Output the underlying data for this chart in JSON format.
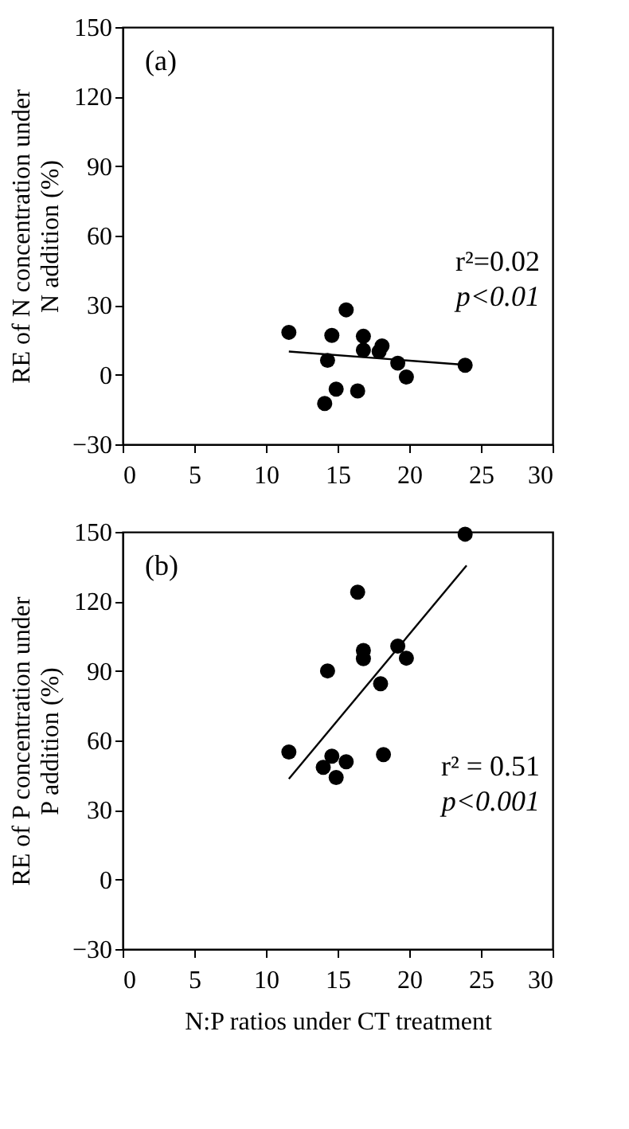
{
  "chart_data": [
    {
      "type": "scatter",
      "ylabel": "RE of N concentration under N addition (%)",
      "xlim": [
        0,
        30
      ],
      "xticks": [
        0,
        5,
        10,
        15,
        20,
        25,
        30
      ],
      "ylim": [
        -30,
        150
      ],
      "yticks": [
        -30,
        0,
        30,
        60,
        90,
        120,
        150
      ],
      "grid": false,
      "annotations": [
        "(a)",
        "r²=0.02",
        "p<0.01"
      ],
      "series": [
        {
          "marker": "circle",
          "color": "#000000",
          "x": [
            11.6,
            14.6,
            15.6,
            16.8,
            16.8,
            18.1,
            17.9,
            14.3,
            19.2,
            19.8,
            23.9,
            14.9,
            16.4,
            14.1
          ],
          "values": [
            18.3,
            17,
            28,
            16.6,
            10.6,
            12.4,
            10,
            6.2,
            5,
            -1,
            4.1,
            -6.2,
            -7,
            -12.4
          ]
        },
        {
          "type": "line",
          "color": "#000000",
          "x": [
            11.6,
            24.3
          ],
          "values": [
            10,
            4.1
          ]
        }
      ]
    },
    {
      "type": "scatter",
      "xlabel": "N:P ratios under CT treatment",
      "ylabel": "RE of P concentration under P addition (%)",
      "xlim": [
        0,
        30
      ],
      "xticks": [
        0,
        5,
        10,
        15,
        20,
        25,
        30
      ],
      "ylim": [
        -30,
        150
      ],
      "yticks": [
        -30,
        0,
        30,
        60,
        90,
        120,
        150
      ],
      "grid": false,
      "annotations": [
        "(b)",
        "r² = 0.51",
        "p<0.001"
      ],
      "series": [
        {
          "marker": "circle",
          "color": "#000000",
          "x": [
            23.9,
            16.4,
            16.8,
            16.8,
            19.2,
            19.8,
            14.3,
            18.0,
            11.6,
            14.6,
            14.0,
            14.9,
            15.6,
            18.2
          ],
          "values": [
            149,
            124,
            98.8,
            95.3,
            100.7,
            95.5,
            90,
            84.5,
            55,
            53.2,
            48.4,
            44,
            50.8,
            53.9
          ]
        },
        {
          "type": "line",
          "color": "#000000",
          "x": [
            11.6,
            24.0
          ],
          "values": [
            43.4,
            135.5
          ]
        }
      ]
    }
  ]
}
